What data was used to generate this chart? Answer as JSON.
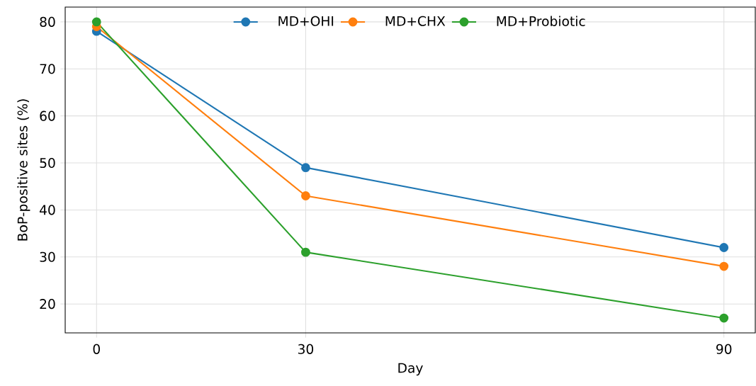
{
  "chart_data": {
    "type": "line",
    "xlabel": "Day",
    "ylabel": "BoP-positive sites (%)",
    "x": [
      0,
      30,
      90
    ],
    "series": [
      {
        "name": "MD+OHI",
        "color": "#1f77b4",
        "values": [
          78,
          49,
          32
        ]
      },
      {
        "name": "MD+CHX",
        "color": "#ff7f0e",
        "values": [
          79,
          43,
          28
        ]
      },
      {
        "name": "MD+Probiotic",
        "color": "#2ca02c",
        "values": [
          80,
          31,
          17
        ]
      }
    ],
    "xlim": [
      -4.5,
      94.5
    ],
    "ylim": [
      13.85,
      83.15
    ],
    "xticks": [
      0,
      30,
      90
    ],
    "yticks": [
      20,
      30,
      40,
      50,
      60,
      70,
      80
    ],
    "grid": true,
    "legend": "top",
    "marker": "circle",
    "line_style": "solid"
  }
}
